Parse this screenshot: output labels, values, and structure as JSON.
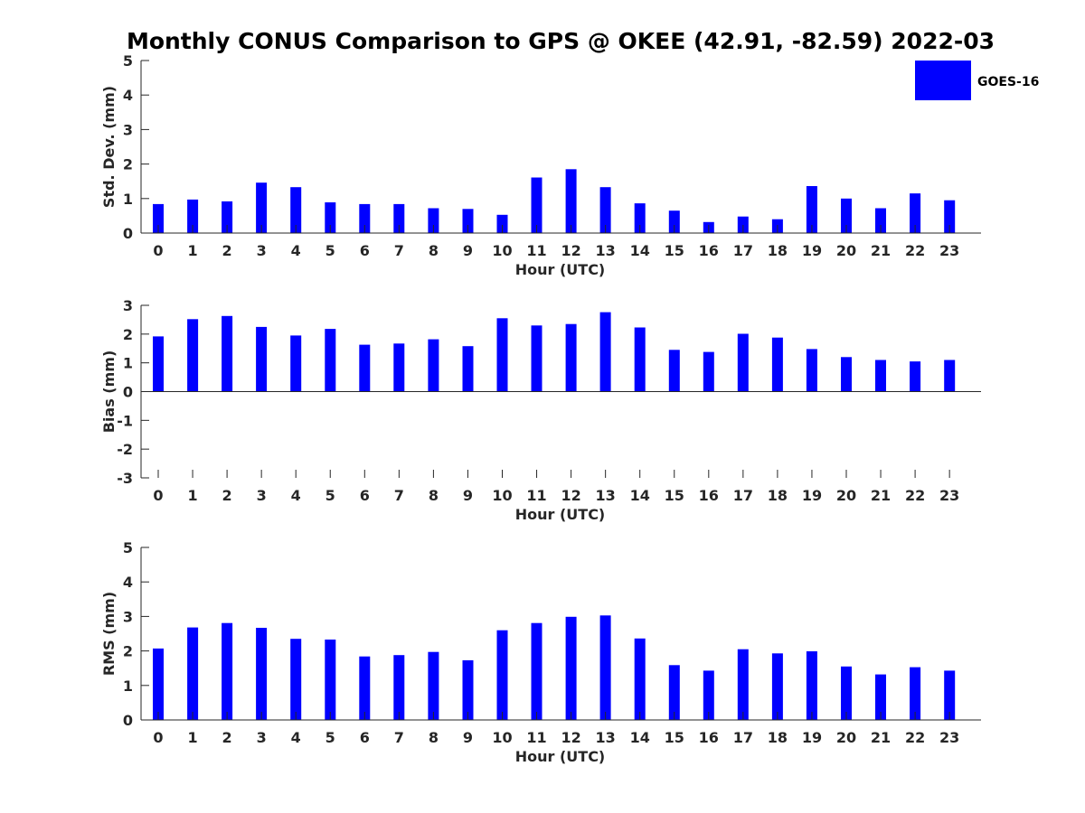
{
  "chart_data": {
    "title": "Monthly CONUS Comparison to GPS @ OKEE (42.91, -82.59) 2022-03",
    "legend": {
      "label": "GOES-16",
      "color": "#0000ff",
      "placement": "top-right"
    },
    "panels": [
      {
        "type": "bar",
        "xlabel": "Hour (UTC)",
        "ylabel": "Std. Dev. (mm)",
        "ylim": [
          0,
          5
        ],
        "yticks": [
          "0",
          "1",
          "2",
          "3",
          "4",
          "5"
        ],
        "categories": [
          "0",
          "1",
          "2",
          "3",
          "4",
          "5",
          "6",
          "7",
          "8",
          "9",
          "10",
          "11",
          "12",
          "13",
          "14",
          "15",
          "16",
          "17",
          "18",
          "19",
          "20",
          "21",
          "22",
          "23"
        ],
        "series": [
          {
            "name": "GOES-16",
            "values": [
              0.84,
              0.97,
              0.92,
              1.46,
              1.33,
              0.89,
              0.84,
              0.84,
              0.72,
              0.7,
              0.53,
              1.61,
              1.85,
              1.33,
              0.86,
              0.65,
              0.32,
              0.48,
              0.4,
              1.36,
              1.0,
              0.72,
              1.15,
              0.95
            ]
          }
        ],
        "grid": false
      },
      {
        "type": "bar",
        "xlabel": "Hour (UTC)",
        "ylabel": "Bias (mm)",
        "ylim": [
          -3,
          3
        ],
        "yticks": [
          "-3",
          "-2",
          "-1",
          "0",
          "1",
          "2",
          "3"
        ],
        "categories": [
          "0",
          "1",
          "2",
          "3",
          "4",
          "5",
          "6",
          "7",
          "8",
          "9",
          "10",
          "11",
          "12",
          "13",
          "14",
          "15",
          "16",
          "17",
          "18",
          "19",
          "20",
          "21",
          "22",
          "23"
        ],
        "series": [
          {
            "name": "GOES-16",
            "values": [
              1.92,
              2.52,
              2.63,
              2.25,
              1.95,
              2.18,
              1.63,
              1.67,
              1.82,
              1.58,
              2.55,
              2.3,
              2.35,
              2.76,
              2.23,
              1.45,
              1.38,
              2.01,
              1.88,
              1.48,
              1.2,
              1.1,
              1.05,
              1.1
            ]
          }
        ],
        "grid": false
      },
      {
        "type": "bar",
        "xlabel": "Hour (UTC)",
        "ylabel": "RMS (mm)",
        "ylim": [
          0,
          5
        ],
        "yticks": [
          "0",
          "1",
          "2",
          "3",
          "4",
          "5"
        ],
        "categories": [
          "0",
          "1",
          "2",
          "3",
          "4",
          "5",
          "6",
          "7",
          "8",
          "9",
          "10",
          "11",
          "12",
          "13",
          "14",
          "15",
          "16",
          "17",
          "18",
          "19",
          "20",
          "21",
          "22",
          "23"
        ],
        "series": [
          {
            "name": "GOES-16",
            "values": [
              2.07,
              2.68,
              2.81,
              2.67,
              2.35,
              2.33,
              1.84,
              1.88,
              1.97,
              1.73,
              2.6,
              2.81,
              2.99,
              3.03,
              2.36,
              1.59,
              1.43,
              2.05,
              1.93,
              1.99,
              1.55,
              1.32,
              1.53,
              1.43
            ]
          }
        ],
        "grid": false
      }
    ]
  }
}
